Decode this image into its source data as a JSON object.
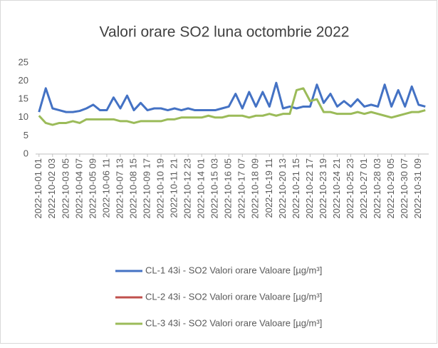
{
  "chart_data": {
    "type": "line",
    "title": "Valori orare SO2 luna octombrie 2022",
    "categories": [
      "2022-10-01 01",
      null,
      "2022-10-02 03",
      null,
      "2022-10-03 05",
      null,
      "2022-10-04 07",
      null,
      "2022-10-05 09",
      null,
      "2022-10-06 11",
      null,
      "2022-10-07 13",
      null,
      "2022-10-08 15",
      null,
      "2022-10-09 17",
      null,
      "2022-10-10 19",
      null,
      "2022-10-11 21",
      null,
      "2022-10-12 23",
      null,
      "2022-10-14 01",
      null,
      "2022-10-15 03",
      null,
      "2022-10-16 05",
      null,
      "2022-10-17 07",
      null,
      "2022-10-18 09",
      null,
      "2022-10-19 11",
      null,
      "2022-10-20 13",
      null,
      "2022-10-21 15",
      null,
      "2022-10-22 17",
      null,
      "2022-10-23 19",
      null,
      "2022-10-24 21",
      null,
      "2022-10-25 23",
      null,
      "2022-10-27 01",
      null,
      "2022-10-28 03",
      null,
      "2022-10-29 05",
      null,
      "2022-10-30 07",
      null,
      "2022-10-31 09",
      null
    ],
    "series": [
      {
        "name": "CL-1 43i - SO2 Valori orare Valoare [µg/m³]",
        "color": "#4472c4",
        "values": [
          11.5,
          18,
          12.5,
          12,
          11.5,
          11.5,
          11.8,
          12.5,
          13.5,
          12,
          12,
          15.5,
          12.5,
          16,
          12,
          14,
          12,
          12.5,
          12.5,
          12,
          12.5,
          12,
          12.5,
          12,
          12,
          12,
          12,
          12.5,
          13,
          16.5,
          12.5,
          17,
          13,
          17,
          13,
          19.5,
          12.5,
          13,
          12.5,
          13,
          13,
          19,
          14,
          16.5,
          13,
          14.5,
          13,
          15,
          13,
          13.5,
          13,
          19,
          13,
          17.5,
          13,
          18.5,
          13.5,
          13
        ]
      },
      {
        "name": "CL-2 43i - SO2 Valori orare Valoare [µg/m³]",
        "color": "#c0504d",
        "values": [
          null,
          null,
          null,
          null,
          null,
          null,
          null,
          null,
          null,
          null,
          null,
          null,
          null,
          null,
          null,
          null,
          null,
          null,
          null,
          null,
          null,
          null,
          null,
          null,
          null,
          null,
          null,
          null,
          null,
          null,
          null,
          null,
          null,
          null,
          null,
          null,
          null,
          null,
          null,
          null,
          null,
          null,
          null,
          null,
          null,
          null,
          null,
          null,
          null,
          null,
          null,
          null,
          null,
          null,
          null,
          null,
          null,
          null
        ]
      },
      {
        "name": "CL-3 43i - SO2 Valori orare Valoare [µg/m³]",
        "color": "#9bbb59",
        "values": [
          10.5,
          8.5,
          8,
          8.5,
          8.5,
          9,
          8.5,
          9.5,
          9.5,
          9.5,
          9.5,
          9.5,
          9,
          9,
          8.5,
          9,
          9,
          9,
          9,
          9.5,
          9.5,
          10,
          10,
          10,
          10,
          10.5,
          10,
          10,
          10.5,
          10.5,
          10.5,
          10,
          10.5,
          10.5,
          11,
          10.5,
          11,
          11,
          17.5,
          18,
          14.5,
          15,
          11.5,
          11.5,
          11,
          11,
          11,
          11.5,
          11,
          11.5,
          11,
          10.5,
          10,
          10.5,
          11,
          11.5,
          11.5,
          12
        ]
      }
    ],
    "ylim": [
      0,
      25
    ],
    "yticks": [
      0,
      5,
      10,
      15,
      20,
      25
    ],
    "grid": false
  }
}
